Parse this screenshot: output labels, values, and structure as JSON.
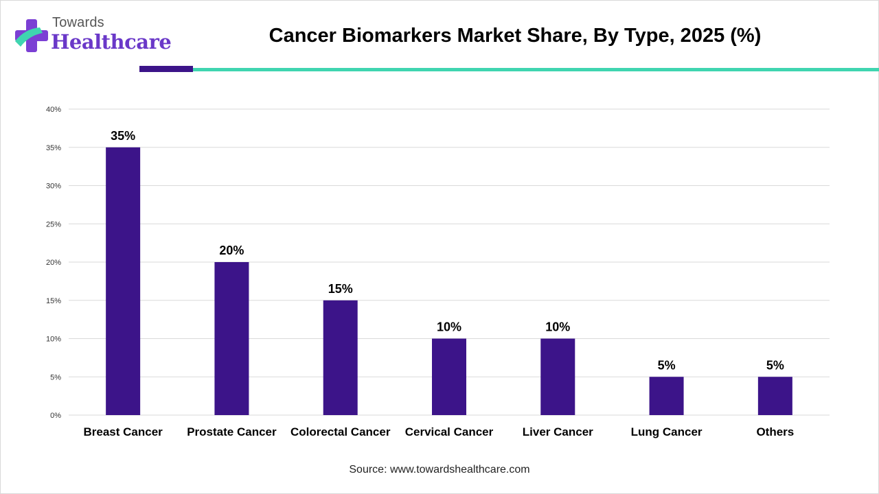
{
  "brand": {
    "line1": "Towards",
    "line2": "Healthcare"
  },
  "colors": {
    "bar": "#3c1489",
    "accent_purple": "#3c1489",
    "accent_teal": "#3fd5b0",
    "grid": "#d9d9d9"
  },
  "footer": {
    "source": "Source: www.towardshealthcare.com"
  },
  "chart_data": {
    "type": "bar",
    "title": "Cancer Biomarkers Market Share, By Type, 2025 (%)",
    "categories": [
      "Breast Cancer",
      "Prostate Cancer",
      "Colorectal Cancer",
      "Cervical Cancer",
      "Liver Cancer",
      "Lung Cancer",
      "Others"
    ],
    "values": [
      35,
      20,
      15,
      10,
      10,
      5,
      5
    ],
    "data_labels": [
      "35%",
      "20%",
      "15%",
      "10%",
      "10%",
      "5%",
      "5%"
    ],
    "y_ticks": [
      "0%",
      "5%",
      "10%",
      "15%",
      "20%",
      "25%",
      "30%",
      "35%",
      "40%"
    ],
    "ylim": [
      0,
      40
    ],
    "y_step": 5,
    "xlabel": "",
    "ylabel": "",
    "grid": true,
    "legend": "none"
  }
}
